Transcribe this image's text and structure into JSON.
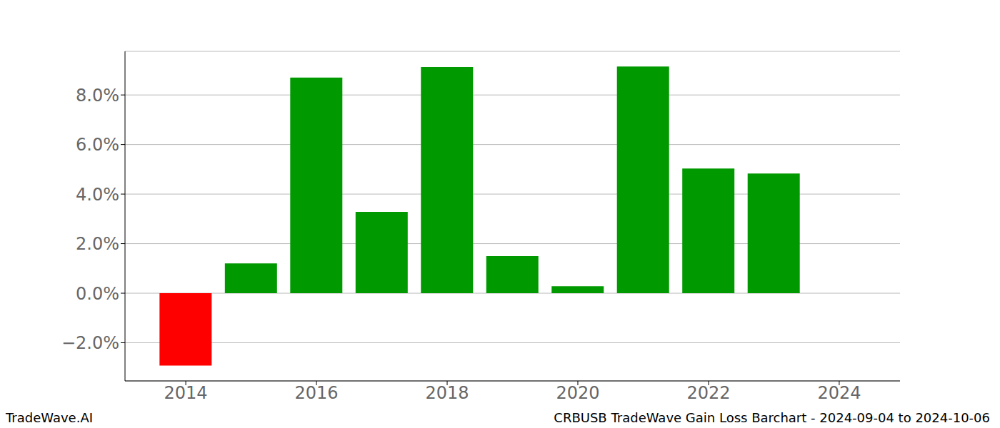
{
  "chart_data": {
    "type": "bar",
    "title": "CRBUSB TradeWave Gain Loss Barchart - 2024-09-04 to 2024-10-06",
    "annotations": [
      "TradeWave.AI"
    ],
    "x": [
      2014,
      2015,
      2016,
      2017,
      2018,
      2019,
      2020,
      2021,
      2022,
      2023
    ],
    "values": [
      -2.92,
      1.2,
      8.7,
      3.28,
      9.13,
      1.5,
      0.28,
      9.15,
      5.03,
      4.83
    ],
    "colors": [
      "#ff0000",
      "#009900",
      "#009900",
      "#009900",
      "#009900",
      "#009900",
      "#009900",
      "#009900",
      "#009900",
      "#009900"
    ],
    "xlim": [
      2013.07,
      2024.93
    ],
    "xticks": [
      2014,
      2016,
      2018,
      2020,
      2022,
      2024
    ],
    "ylim": [
      -3.54,
      9.76
    ],
    "yticks": [
      {
        "value": -2,
        "label": "−2.0%"
      },
      {
        "value": 0,
        "label": "0.0%"
      },
      {
        "value": 2,
        "label": "2.0%"
      },
      {
        "value": 4,
        "label": "4.0%"
      },
      {
        "value": 6,
        "label": "6.0%"
      },
      {
        "value": 8,
        "label": "8.0%"
      }
    ],
    "grid": true
  }
}
